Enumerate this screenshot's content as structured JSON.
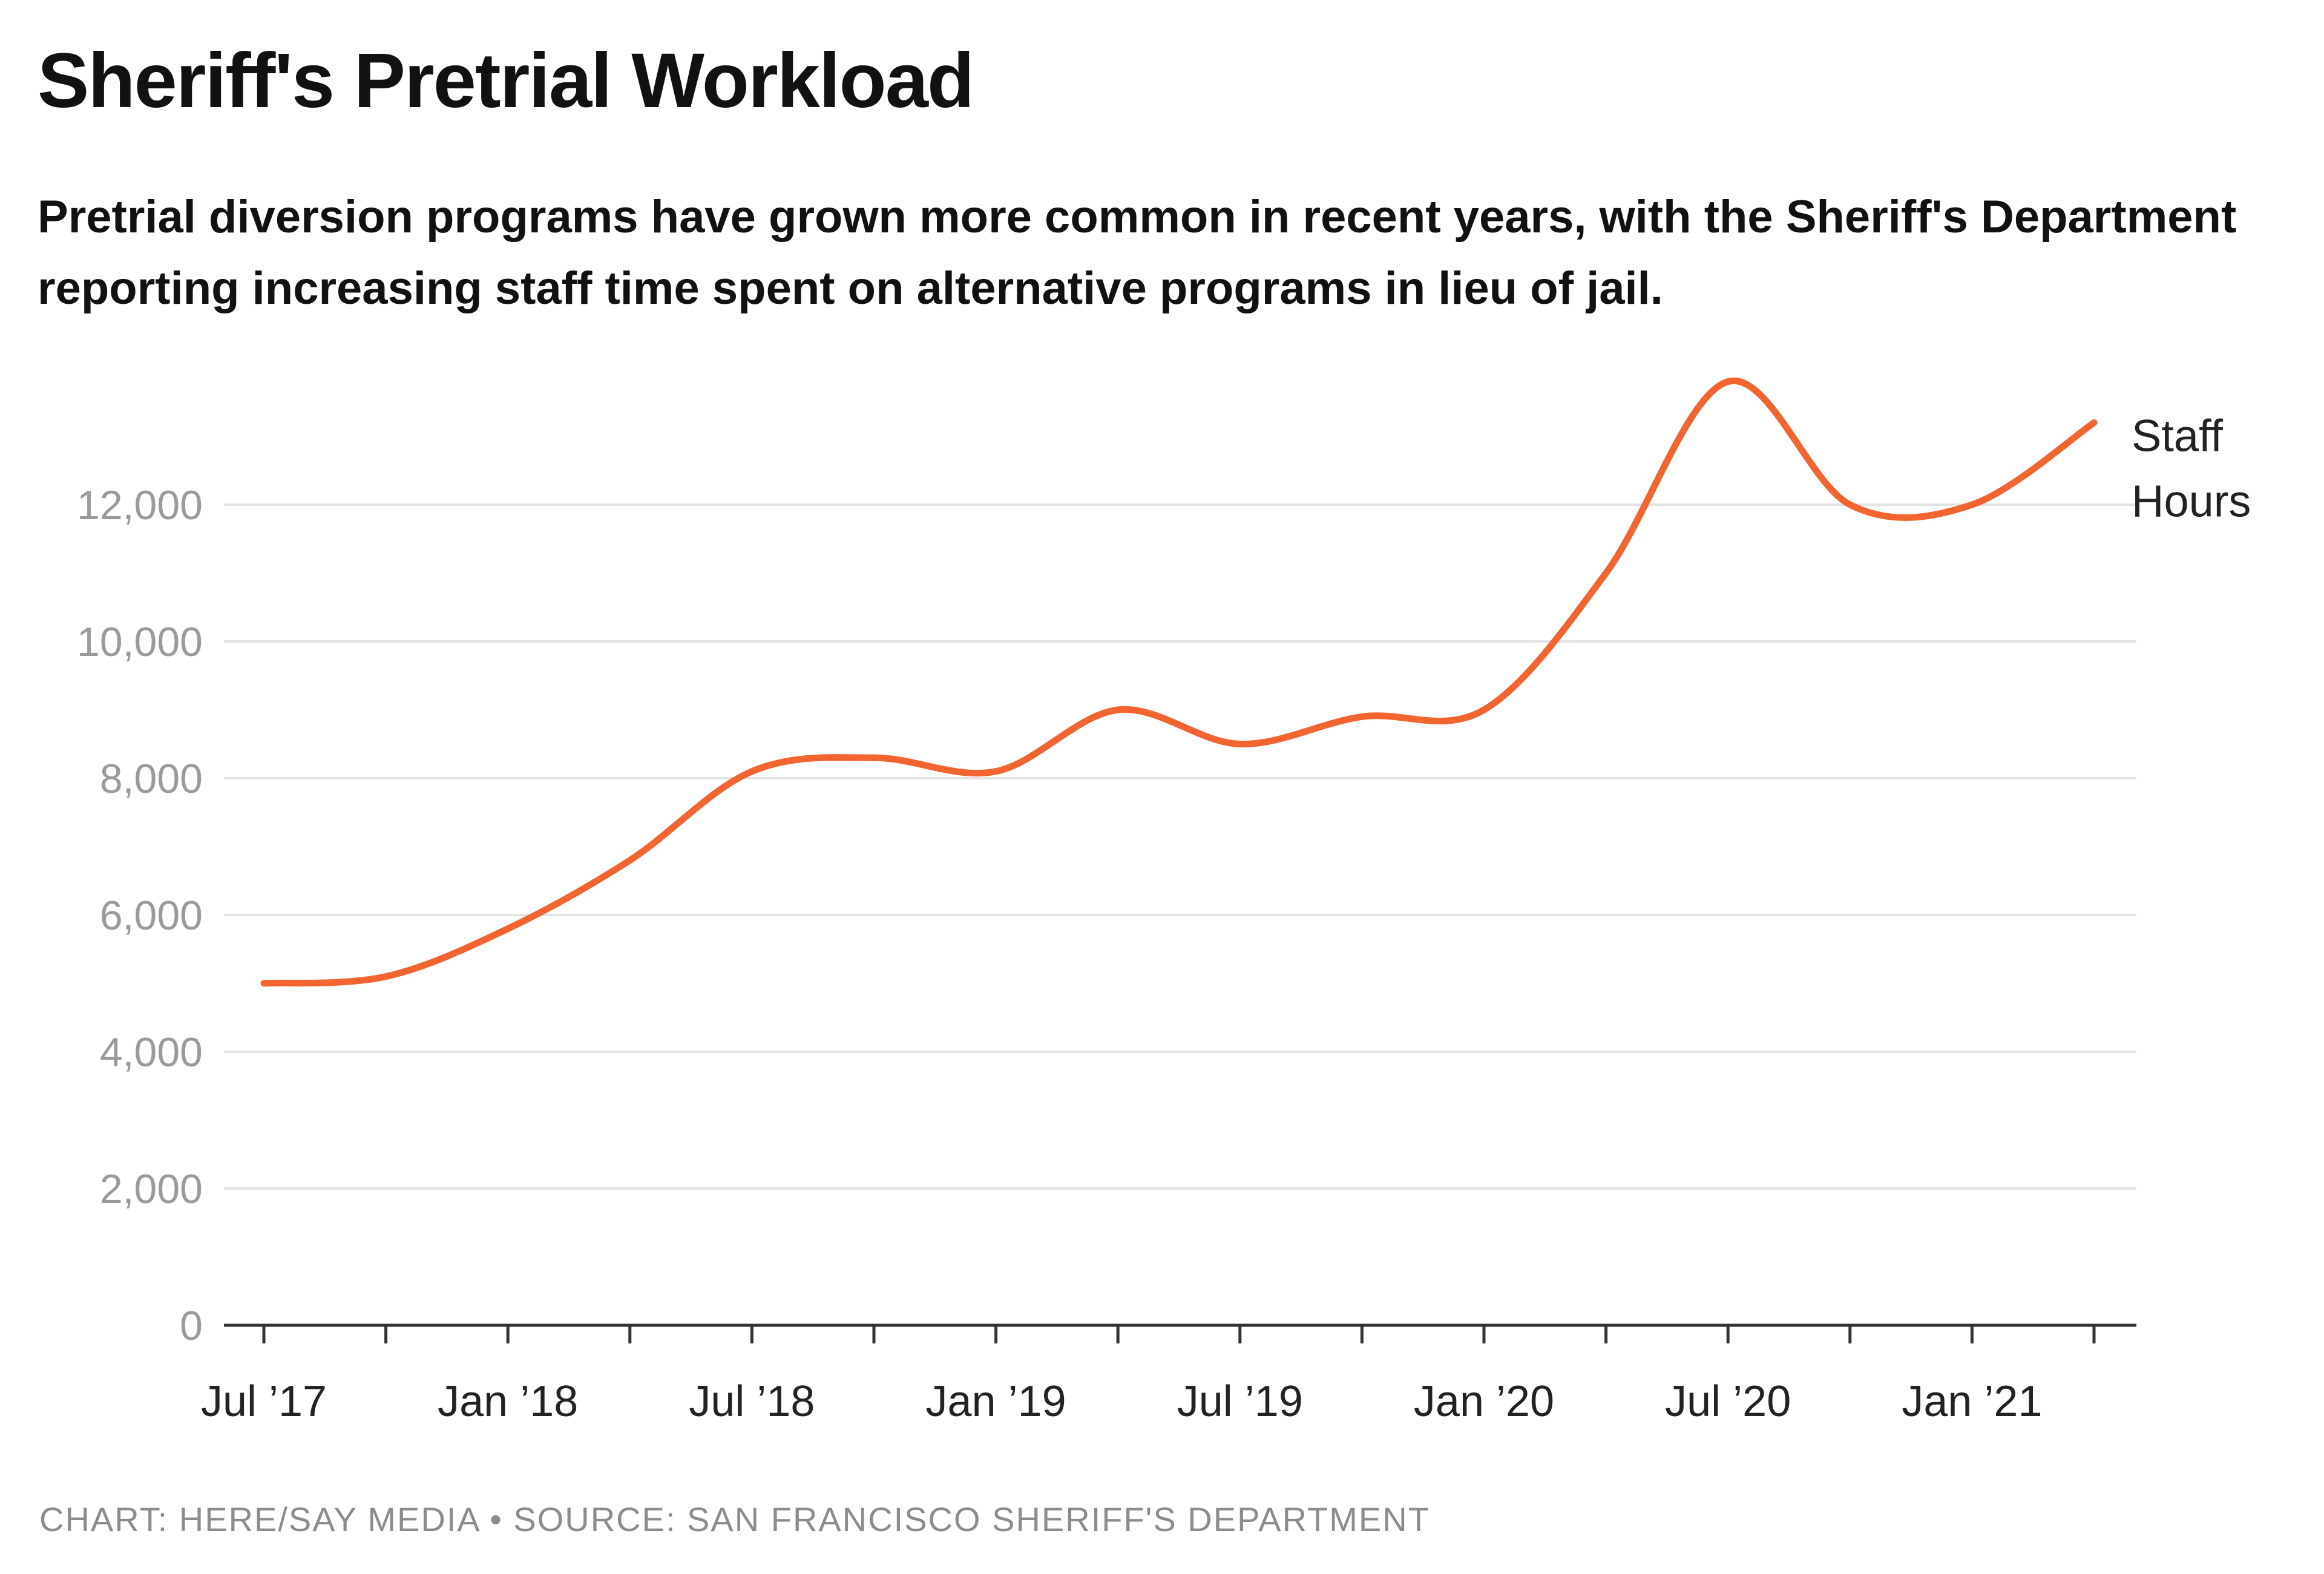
{
  "header": {
    "title": "Sheriff's Pretrial Workload",
    "subtitle": "Pretrial diversion programs have grown more common in recent years, with the Sheriff's Department reporting increasing staff time spent on alternative programs in lieu of jail."
  },
  "footer": {
    "credit": "CHART: HERE/SAY MEDIA • SOURCE: SAN FRANCISCO SHERIFF'S DEPARTMENT"
  },
  "chart_data": {
    "type": "line",
    "title": "Sheriff's Pretrial Workload",
    "xlabel": "",
    "ylabel": "",
    "x": [
      "2017-07",
      "2017-10",
      "2018-01",
      "2018-04",
      "2018-07",
      "2018-10",
      "2019-01",
      "2019-04",
      "2019-07",
      "2019-10",
      "2020-01",
      "2020-04",
      "2020-07",
      "2020-10",
      "2021-01",
      "2021-04"
    ],
    "x_ticks": [
      "Jul ’17",
      "Jan ’18",
      "Jul ’18",
      "Jan ’19",
      "Jul ’19",
      "Jan ’20",
      "Jul ’20",
      "Jan ’21"
    ],
    "series": [
      {
        "name": "Staff Hours",
        "label_lines": [
          "Staff",
          "Hours"
        ],
        "color": "#f26430",
        "values": [
          5000,
          5100,
          5800,
          6800,
          8100,
          8300,
          8100,
          9000,
          8500,
          8900,
          9000,
          11000,
          13800,
          12000,
          12000,
          13200
        ]
      }
    ],
    "y_ticks": [
      0,
      2000,
      4000,
      6000,
      8000,
      10000,
      12000
    ],
    "ylim": [
      0,
      14000
    ],
    "grid": true,
    "legend": "direct label at line end (right)"
  }
}
